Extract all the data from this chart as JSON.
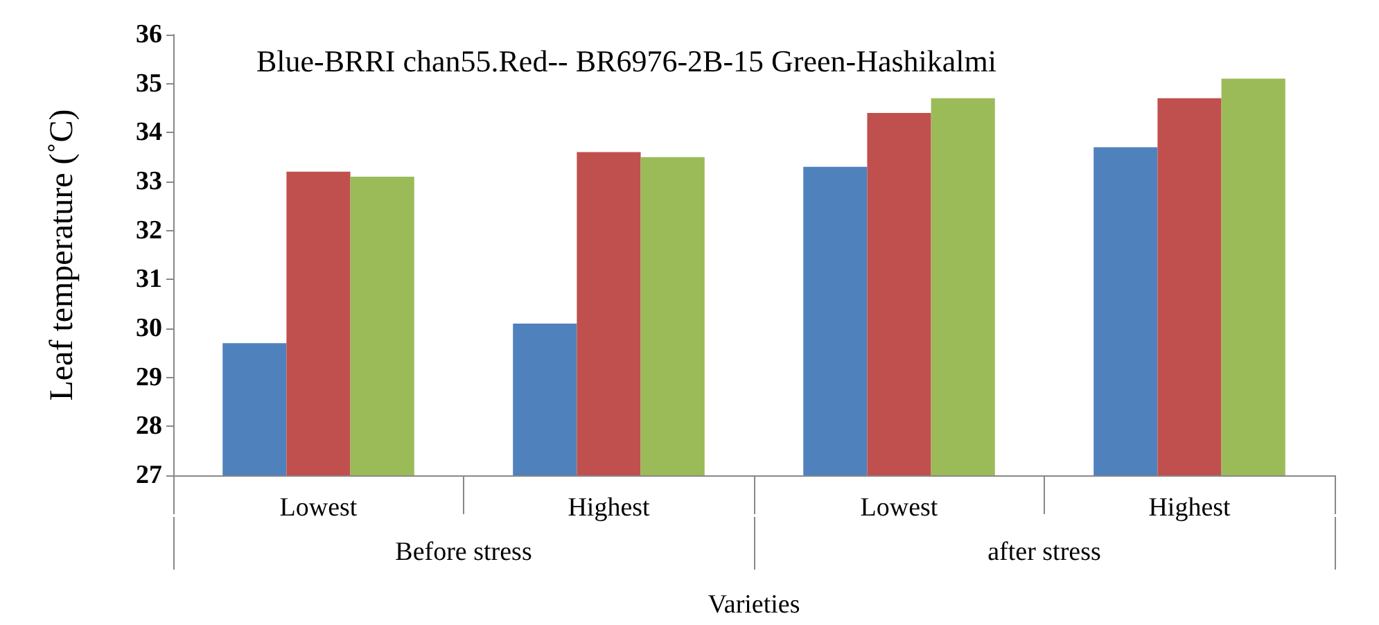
{
  "chart_data": {
    "type": "bar",
    "title": "Blue-BRRI chan55.Red-- BR6976-2B-15 Green-Hashikalmi",
    "xlabel": "Varieties",
    "ylabel": "Leaf temperature (˚C)",
    "categories": [
      "Lowest",
      "Highest",
      "Lowest",
      "Highest"
    ],
    "annotations": [
      "Before stress",
      "after stress"
    ],
    "series": [
      {
        "color": "#4f81bd",
        "values": [
          29.7,
          30.1,
          33.3,
          33.7
        ]
      },
      {
        "color": "#c0504d",
        "values": [
          33.2,
          33.6,
          34.4,
          34.7
        ]
      },
      {
        "color": "#9bbb59",
        "values": [
          33.1,
          33.5,
          34.7,
          35.1
        ]
      }
    ],
    "ylim": [
      27,
      36
    ],
    "yticks": [
      27,
      28,
      29,
      30,
      31,
      32,
      33,
      34,
      35,
      36
    ],
    "grid": false
  }
}
